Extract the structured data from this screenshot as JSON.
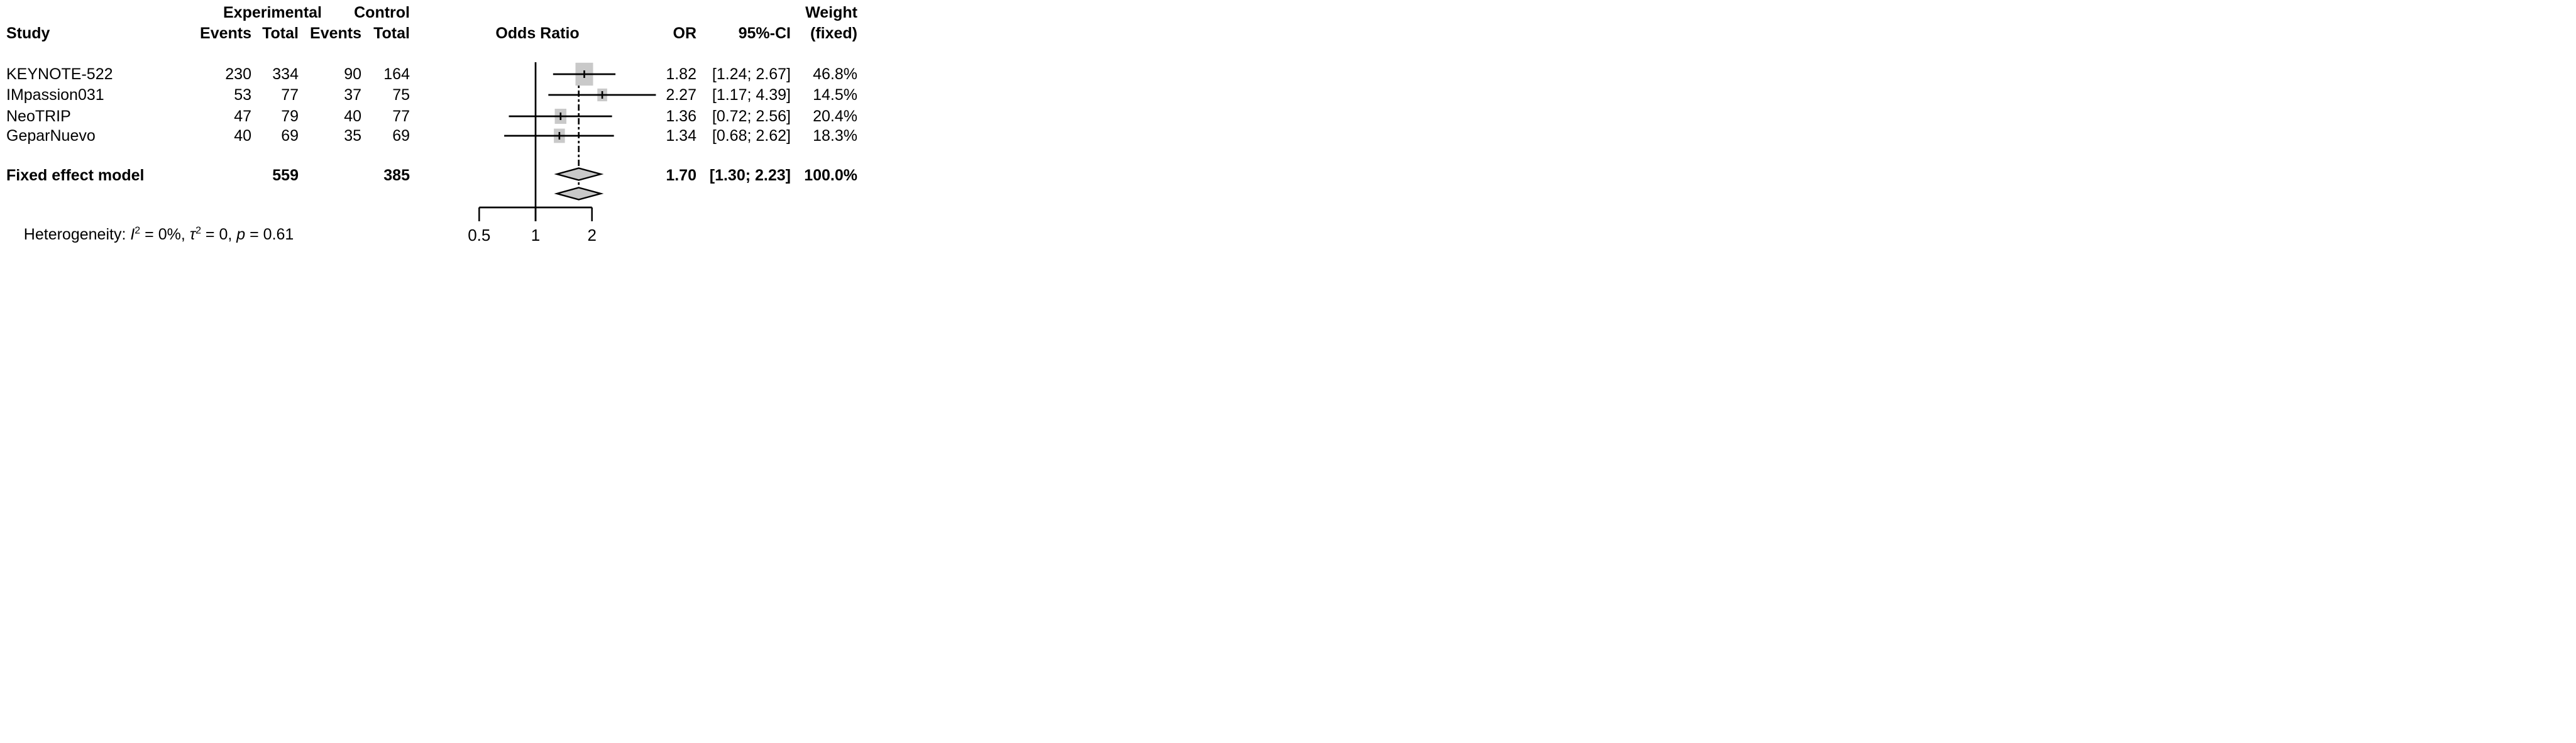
{
  "header": {
    "study": "Study",
    "experimental": "Experimental",
    "control": "Control",
    "exp_events": "Events",
    "exp_total": "Total",
    "ctrl_events": "Events",
    "ctrl_total": "Total",
    "odds_ratio": "Odds Ratio",
    "or": "OR",
    "ci": "95%-CI",
    "weight_line1": "Weight",
    "weight_line2": "(fixed)"
  },
  "studies": [
    {
      "name": "KEYNOTE-522",
      "exp_events": "230",
      "exp_total": "334",
      "ctrl_events": "90",
      "ctrl_total": "164",
      "or_text": "1.82",
      "ci_text": "[1.24; 2.67]",
      "weight_text": "46.8%"
    },
    {
      "name": "IMpassion031",
      "exp_events": "53",
      "exp_total": "77",
      "ctrl_events": "37",
      "ctrl_total": "75",
      "or_text": "2.27",
      "ci_text": "[1.17; 4.39]",
      "weight_text": "14.5%"
    },
    {
      "name": "NeoTRIP",
      "exp_events": "47",
      "exp_total": "79",
      "ctrl_events": "40",
      "ctrl_total": "77",
      "or_text": "1.36",
      "ci_text": "[0.72; 2.56]",
      "weight_text": "20.4%"
    },
    {
      "name": "GeparNuevo",
      "exp_events": "40",
      "exp_total": "69",
      "ctrl_events": "35",
      "ctrl_total": "69",
      "or_text": "1.34",
      "ci_text": "[0.68; 2.62]",
      "weight_text": "18.3%"
    }
  ],
  "summary": {
    "label": "Fixed effect model",
    "exp_total": "559",
    "ctrl_total": "385",
    "or_text": "1.70",
    "ci_text": "[1.30; 2.23]",
    "weight_text": "100.0%"
  },
  "heterogeneity": {
    "prefix": "Heterogeneity: ",
    "i2_label": "I",
    "i2_sup": "2",
    "i2_value": " = 0%, ",
    "tau_label": "τ",
    "tau_sup": "2",
    "tau_value": " = 0, ",
    "p_label": "p",
    "p_value": " = 0.61"
  },
  "axis_tick_labels": [
    "0.5",
    "1",
    "2"
  ],
  "colors": {
    "marker_fill": "#c9c9c9",
    "line": "#000000",
    "background": "#ffffff"
  },
  "chart_data": {
    "type": "forest",
    "x_scale": "log",
    "axis_ticks": [
      0.5,
      1,
      2
    ],
    "ref_line": 1,
    "pooled_line": 1.7,
    "studies": [
      {
        "name": "KEYNOTE-522",
        "exp_events": 230,
        "exp_total": 334,
        "ctrl_events": 90,
        "ctrl_total": 164,
        "or": 1.82,
        "ci_lower": 1.24,
        "ci_upper": 2.67,
        "weight_pct": 46.8
      },
      {
        "name": "IMpassion031",
        "exp_events": 53,
        "exp_total": 77,
        "ctrl_events": 37,
        "ctrl_total": 75,
        "or": 2.27,
        "ci_lower": 1.17,
        "ci_upper": 4.39,
        "weight_pct": 14.5
      },
      {
        "name": "NeoTRIP",
        "exp_events": 47,
        "exp_total": 79,
        "ctrl_events": 40,
        "ctrl_total": 77,
        "or": 1.36,
        "ci_lower": 0.72,
        "ci_upper": 2.56,
        "weight_pct": 20.4
      },
      {
        "name": "GeparNuevo",
        "exp_events": 40,
        "exp_total": 69,
        "ctrl_events": 35,
        "ctrl_total": 69,
        "or": 1.34,
        "ci_lower": 0.68,
        "ci_upper": 2.62,
        "weight_pct": 18.3
      }
    ],
    "summary": {
      "name": "Fixed effect model",
      "exp_total": 559,
      "ctrl_total": 385,
      "or": 1.7,
      "ci_lower": 1.3,
      "ci_upper": 2.23,
      "weight_pct": 100.0
    },
    "second_diamond": {
      "or": 1.7,
      "ci_lower": 1.3,
      "ci_upper": 2.23
    },
    "heterogeneity": {
      "I2": "0%",
      "tau2": 0,
      "p": 0.61
    }
  }
}
